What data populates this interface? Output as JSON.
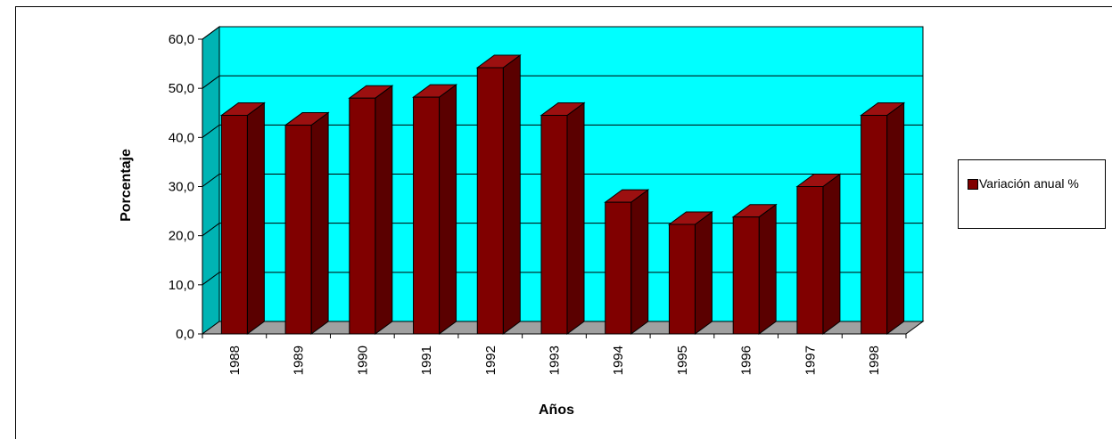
{
  "chart_data": {
    "type": "bar",
    "categories": [
      "1988",
      "1989",
      "1990",
      "1991",
      "1992",
      "1993",
      "1994",
      "1995",
      "1996",
      "1997",
      "1998"
    ],
    "series": [
      {
        "name": "Variación anual %",
        "values": [
          44.5,
          42.5,
          48.0,
          48.2,
          54.2,
          44.5,
          26.8,
          22.3,
          23.8,
          30.0,
          44.5
        ]
      }
    ],
    "xlabel": "Años",
    "ylabel": "Porcentaje",
    "ylim": [
      0,
      60
    ],
    "yticks": [
      0,
      10,
      20,
      30,
      40,
      50,
      60
    ],
    "ytick_labels": [
      "0,0",
      "10,0",
      "20,0",
      "30,0",
      "40,0",
      "50,0",
      "60,0"
    ],
    "grid": true,
    "legend_position": "right",
    "colors": {
      "bar_front": "#800000",
      "bar_side": "#5a0000",
      "bar_top": "#9c1010",
      "back_wall": "#00ffff",
      "side_wall": "#00b4b4",
      "floor": "#a0a0a0"
    }
  }
}
